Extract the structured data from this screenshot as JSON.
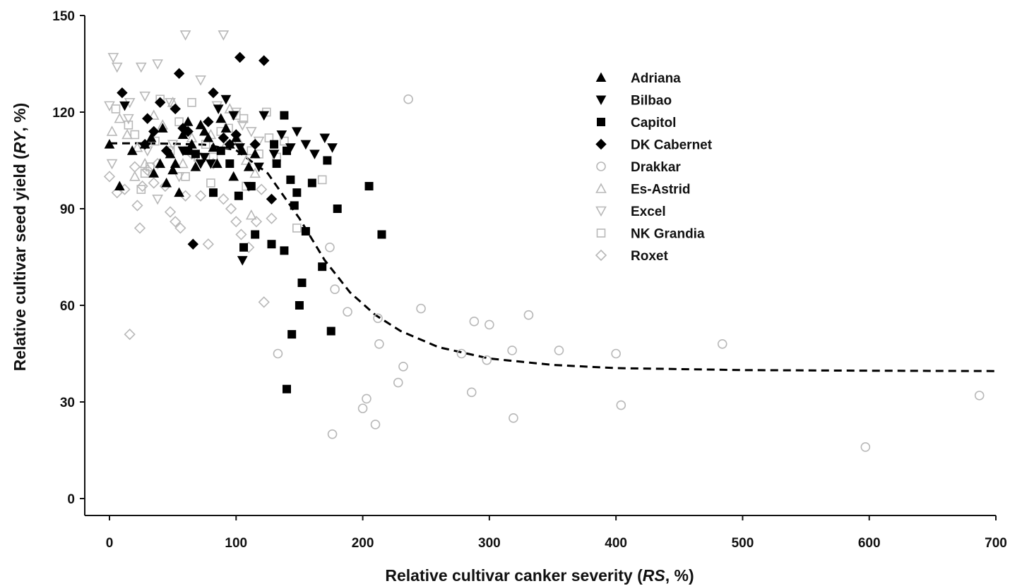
{
  "chart_data": {
    "type": "scatter",
    "xlabel_parts": [
      {
        "text": "Relative cultivar canker severity (",
        "italic": false
      },
      {
        "text": "RS",
        "italic": true
      },
      {
        "text": ", %)",
        "italic": false
      }
    ],
    "ylabel_parts": [
      {
        "text": "Relative cultivar seed yield (",
        "italic": false
      },
      {
        "text": "RY",
        "italic": true
      },
      {
        "text": ", %)",
        "italic": false
      }
    ],
    "xlim": [
      0,
      700
    ],
    "ylim": [
      0,
      150
    ],
    "xticks": [
      0,
      100,
      200,
      300,
      400,
      500,
      600,
      700
    ],
    "yticks": [
      0,
      30,
      60,
      90,
      120,
      150
    ],
    "grid": false,
    "legend_position": "top-right",
    "series": [
      {
        "name": "Adriana",
        "marker": "triangle-up",
        "filled": true,
        "color": "#000000",
        "points": [
          [
            0,
            110
          ],
          [
            8,
            97
          ],
          [
            18,
            108
          ],
          [
            28,
            110
          ],
          [
            33,
            112
          ],
          [
            35,
            101
          ],
          [
            40,
            104
          ],
          [
            42,
            115
          ],
          [
            45,
            98
          ],
          [
            48,
            107
          ],
          [
            50,
            102
          ],
          [
            52,
            104
          ],
          [
            55,
            95
          ],
          [
            58,
            113
          ],
          [
            62,
            117
          ],
          [
            65,
            110
          ],
          [
            68,
            103
          ],
          [
            72,
            116
          ],
          [
            75,
            114
          ],
          [
            78,
            112
          ],
          [
            82,
            109
          ],
          [
            85,
            104
          ],
          [
            88,
            118
          ],
          [
            92,
            115
          ],
          [
            95,
            110
          ],
          [
            98,
            100
          ],
          [
            100,
            112
          ],
          [
            105,
            108
          ],
          [
            110,
            103
          ],
          [
            115,
            107
          ]
        ]
      },
      {
        "name": "Bilbao",
        "marker": "triangle-down",
        "filled": true,
        "color": "#000000",
        "points": [
          [
            12,
            122
          ],
          [
            58,
            108
          ],
          [
            72,
            104
          ],
          [
            75,
            106
          ],
          [
            80,
            104
          ],
          [
            86,
            121
          ],
          [
            92,
            124
          ],
          [
            98,
            119
          ],
          [
            103,
            109
          ],
          [
            105,
            74
          ],
          [
            110,
            97
          ],
          [
            118,
            103
          ],
          [
            122,
            119
          ],
          [
            130,
            107
          ],
          [
            136,
            113
          ],
          [
            143,
            109
          ],
          [
            148,
            114
          ],
          [
            155,
            110
          ],
          [
            162,
            107
          ],
          [
            170,
            112
          ],
          [
            176,
            109
          ]
        ]
      },
      {
        "name": "Capitol",
        "marker": "square",
        "filled": true,
        "color": "#000000",
        "points": [
          [
            62,
            108
          ],
          [
            68,
            107
          ],
          [
            82,
            95
          ],
          [
            88,
            108
          ],
          [
            95,
            104
          ],
          [
            102,
            94
          ],
          [
            106,
            78
          ],
          [
            112,
            97
          ],
          [
            115,
            82
          ],
          [
            128,
            79
          ],
          [
            130,
            110
          ],
          [
            132,
            104
          ],
          [
            138,
            119
          ],
          [
            140,
            108
          ],
          [
            143,
            99
          ],
          [
            146,
            91
          ],
          [
            148,
            95
          ],
          [
            150,
            60
          ],
          [
            152,
            67
          ],
          [
            155,
            83
          ],
          [
            160,
            98
          ],
          [
            168,
            72
          ],
          [
            172,
            105
          ],
          [
            180,
            90
          ],
          [
            205,
            97
          ],
          [
            215,
            82
          ],
          [
            175,
            52
          ],
          [
            144,
            51
          ],
          [
            138,
            77
          ],
          [
            140,
            34
          ]
        ]
      },
      {
        "name": "DK Cabernet",
        "marker": "diamond",
        "filled": true,
        "color": "#000000",
        "points": [
          [
            10,
            126
          ],
          [
            28,
            110
          ],
          [
            30,
            118
          ],
          [
            35,
            114
          ],
          [
            40,
            123
          ],
          [
            45,
            108
          ],
          [
            52,
            121
          ],
          [
            55,
            132
          ],
          [
            58,
            115
          ],
          [
            62,
            114
          ],
          [
            66,
            79
          ],
          [
            78,
            117
          ],
          [
            82,
            126
          ],
          [
            90,
            112
          ],
          [
            95,
            110
          ],
          [
            100,
            113
          ],
          [
            103,
            137
          ],
          [
            115,
            110
          ],
          [
            122,
            136
          ],
          [
            128,
            93
          ]
        ]
      },
      {
        "name": "Drakkar",
        "marker": "circle",
        "filled": false,
        "color": "#b8b8b8",
        "points": [
          [
            133,
            45
          ],
          [
            174,
            78
          ],
          [
            176,
            20
          ],
          [
            178,
            65
          ],
          [
            188,
            58
          ],
          [
            200,
            28
          ],
          [
            203,
            31
          ],
          [
            210,
            23
          ],
          [
            212,
            56
          ],
          [
            213,
            48
          ],
          [
            228,
            36
          ],
          [
            232,
            41
          ],
          [
            236,
            124
          ],
          [
            246,
            59
          ],
          [
            278,
            45
          ],
          [
            286,
            33
          ],
          [
            288,
            55
          ],
          [
            298,
            43
          ],
          [
            300,
            54
          ],
          [
            318,
            46
          ],
          [
            319,
            25
          ],
          [
            331,
            57
          ],
          [
            355,
            46
          ],
          [
            400,
            45
          ],
          [
            404,
            29
          ],
          [
            484,
            48
          ],
          [
            597,
            16
          ],
          [
            687,
            32
          ]
        ]
      },
      {
        "name": "Es-Astrid",
        "marker": "triangle-up",
        "filled": false,
        "color": "#b8b8b8",
        "points": [
          [
            2,
            114
          ],
          [
            8,
            118
          ],
          [
            14,
            113
          ],
          [
            22,
            109
          ],
          [
            28,
            104
          ],
          [
            35,
            119
          ],
          [
            42,
            116
          ],
          [
            50,
            123
          ],
          [
            58,
            104
          ],
          [
            65,
            112
          ],
          [
            72,
            106
          ],
          [
            80,
            113
          ],
          [
            88,
            118
          ],
          [
            95,
            121
          ],
          [
            102,
            111
          ],
          [
            108,
            105
          ],
          [
            115,
            101
          ],
          [
            92,
            110
          ],
          [
            112,
            88
          ],
          [
            20,
            100
          ]
        ]
      },
      {
        "name": "Excel",
        "marker": "triangle-down",
        "filled": false,
        "color": "#b8b8b8",
        "points": [
          [
            3,
            137
          ],
          [
            6,
            134
          ],
          [
            15,
            118
          ],
          [
            25,
            134
          ],
          [
            28,
            125
          ],
          [
            30,
            108
          ],
          [
            38,
            135
          ],
          [
            48,
            123
          ],
          [
            50,
            110
          ],
          [
            60,
            144
          ],
          [
            72,
            130
          ],
          [
            85,
            122
          ],
          [
            90,
            144
          ],
          [
            100,
            120
          ],
          [
            105,
            116
          ],
          [
            112,
            114
          ],
          [
            118,
            111
          ],
          [
            0,
            122
          ],
          [
            2,
            104
          ],
          [
            16,
            123
          ],
          [
            38,
            93
          ],
          [
            55,
            100
          ]
        ]
      },
      {
        "name": "NK Grandia",
        "marker": "square",
        "filled": false,
        "color": "#b8b8b8",
        "points": [
          [
            5,
            121
          ],
          [
            15,
            116
          ],
          [
            20,
            113
          ],
          [
            25,
            96
          ],
          [
            28,
            101
          ],
          [
            32,
            103
          ],
          [
            36,
            111
          ],
          [
            40,
            124
          ],
          [
            48,
            108
          ],
          [
            55,
            117
          ],
          [
            60,
            100
          ],
          [
            65,
            123
          ],
          [
            70,
            106
          ],
          [
            76,
            110
          ],
          [
            82,
            106
          ],
          [
            88,
            114
          ],
          [
            94,
            115
          ],
          [
            100,
            119
          ],
          [
            106,
            118
          ],
          [
            112,
            108
          ],
          [
            118,
            107
          ],
          [
            124,
            120
          ],
          [
            126,
            112
          ],
          [
            132,
            106
          ],
          [
            138,
            111
          ],
          [
            148,
            84
          ],
          [
            168,
            99
          ],
          [
            80,
            98
          ],
          [
            108,
            97
          ]
        ]
      },
      {
        "name": "Roxet",
        "marker": "diamond",
        "filled": false,
        "color": "#b8b8b8",
        "points": [
          [
            0,
            100
          ],
          [
            6,
            95
          ],
          [
            12,
            96
          ],
          [
            16,
            51
          ],
          [
            20,
            103
          ],
          [
            22,
            91
          ],
          [
            24,
            84
          ],
          [
            26,
            97
          ],
          [
            30,
            102
          ],
          [
            35,
            98
          ],
          [
            38,
            104
          ],
          [
            44,
            97
          ],
          [
            48,
            89
          ],
          [
            52,
            86
          ],
          [
            56,
            84
          ],
          [
            60,
            94
          ],
          [
            65,
            107
          ],
          [
            72,
            94
          ],
          [
            78,
            79
          ],
          [
            82,
            104
          ],
          [
            90,
            93
          ],
          [
            96,
            90
          ],
          [
            100,
            86
          ],
          [
            104,
            82
          ],
          [
            110,
            78
          ],
          [
            116,
            86
          ],
          [
            120,
            96
          ],
          [
            122,
            61
          ],
          [
            128,
            87
          ]
        ]
      }
    ],
    "fit_curve": {
      "style": "dashed",
      "color": "#000000",
      "points": [
        [
          0,
          110.3
        ],
        [
          25,
          110.3
        ],
        [
          50,
          110.2
        ],
        [
          75,
          109.9
        ],
        [
          100,
          108.2
        ],
        [
          125,
          101
        ],
        [
          150,
          87
        ],
        [
          170,
          74
        ],
        [
          190,
          64
        ],
        [
          210,
          57
        ],
        [
          230,
          52
        ],
        [
          260,
          47
        ],
        [
          300,
          43.5
        ],
        [
          350,
          41.5
        ],
        [
          400,
          40.5
        ],
        [
          500,
          39.9
        ],
        [
          600,
          39.7
        ],
        [
          700,
          39.6
        ]
      ]
    }
  }
}
